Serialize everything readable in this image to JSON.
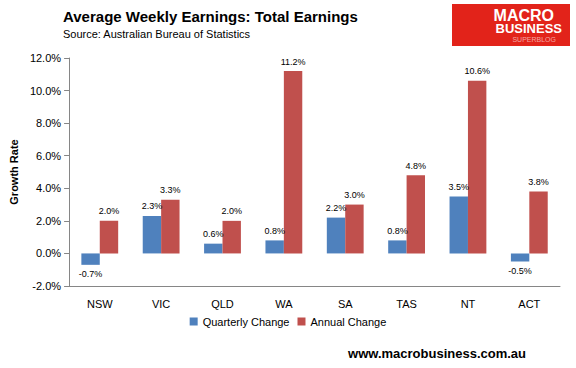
{
  "chart_data": {
    "type": "bar",
    "title": "Average Weekly Earnings: Total Earnings",
    "subtitle": "Source: Australian Bureau of Statistics",
    "y_label": "Growth Rate",
    "annotations": [
      "MACRO",
      "BUSINESS",
      "SUPERBLOG",
      "www.macrobusiness.com.au"
    ],
    "categories": [
      "NSW",
      "VIC",
      "QLD",
      "WA",
      "SA",
      "TAS",
      "NT",
      "ACT"
    ],
    "series": [
      {
        "name": "Quarterly Change",
        "color": "#4f81bd",
        "values": [
          -0.7,
          2.3,
          0.6,
          0.8,
          2.2,
          0.8,
          3.5,
          -0.5
        ],
        "value_labels": [
          "-0.7%",
          "2.3%",
          "0.6%",
          "0.8%",
          "2.2%",
          "0.8%",
          "3.5%",
          "-0.5%"
        ]
      },
      {
        "name": "Annual Change",
        "color": "#c0504d",
        "values": [
          2.0,
          3.3,
          2.0,
          11.2,
          3.0,
          4.8,
          10.6,
          3.8
        ],
        "value_labels": [
          "2.0%",
          "3.3%",
          "2.0%",
          "11.2%",
          "3.0%",
          "4.8%",
          "10.6%",
          "3.8%"
        ]
      }
    ],
    "ylim": [
      -2,
      12
    ],
    "yticks": [
      {
        "value": -2,
        "label": "-2.0%"
      },
      {
        "value": 0,
        "label": "0.0%"
      },
      {
        "value": 2,
        "label": "2.0%"
      },
      {
        "value": 4,
        "label": "4.0%"
      },
      {
        "value": 6,
        "label": "6.0%"
      },
      {
        "value": 8,
        "label": "8.0%"
      },
      {
        "value": 10,
        "label": "10.0%"
      },
      {
        "value": 12,
        "label": "12.0%"
      }
    ],
    "grid": false,
    "legend": "bottom",
    "data_labels": true
  }
}
